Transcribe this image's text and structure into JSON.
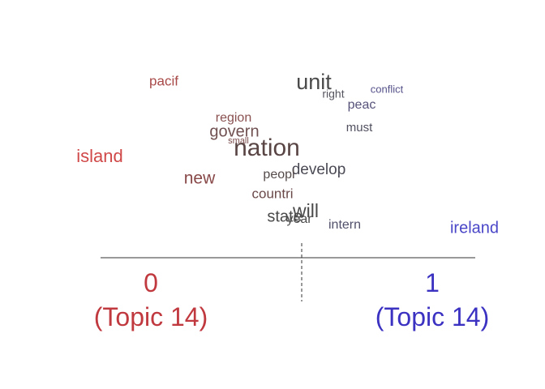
{
  "chart_data": {
    "type": "scatter",
    "title": "",
    "xlabel": "",
    "ylabel": "",
    "poles": [
      {
        "value": "0",
        "label": "(Topic 14)",
        "color": "#c0393f"
      },
      {
        "value": "1",
        "label": "(Topic 14)",
        "color": "#3b32c2"
      }
    ],
    "words": [
      {
        "text": "unit",
        "size": 27,
        "color": "#4a4a4a"
      },
      {
        "text": "pacif",
        "size": 17,
        "color": "#a84a48"
      },
      {
        "text": "right",
        "size": 14,
        "color": "#555560"
      },
      {
        "text": "conflict",
        "size": 13,
        "color": "#55528a"
      },
      {
        "text": "peac",
        "size": 16,
        "color": "#55527a"
      },
      {
        "text": "region",
        "size": 16,
        "color": "#8a5050"
      },
      {
        "text": "govern",
        "size": 20,
        "color": "#705050"
      },
      {
        "text": "must",
        "size": 15,
        "color": "#505060"
      },
      {
        "text": "small",
        "size": 11,
        "color": "#7a4a4a"
      },
      {
        "text": "nation",
        "size": 30,
        "color": "#5a4545"
      },
      {
        "text": "island",
        "size": 22,
        "color": "#d04848"
      },
      {
        "text": "develop",
        "size": 19,
        "color": "#4a4a55"
      },
      {
        "text": "peopl",
        "size": 16,
        "color": "#554a4a"
      },
      {
        "text": "new",
        "size": 21,
        "color": "#884848"
      },
      {
        "text": "countri",
        "size": 17,
        "color": "#6a4848"
      },
      {
        "text": "will",
        "size": 23,
        "color": "#4a4a4a"
      },
      {
        "text": "state",
        "size": 20,
        "color": "#4a4a4a"
      },
      {
        "text": "year",
        "size": 16,
        "color": "#4a4a4a"
      },
      {
        "text": "intern",
        "size": 16,
        "color": "#50506a"
      },
      {
        "text": "ireland",
        "size": 20,
        "color": "#4a46c8"
      }
    ]
  }
}
